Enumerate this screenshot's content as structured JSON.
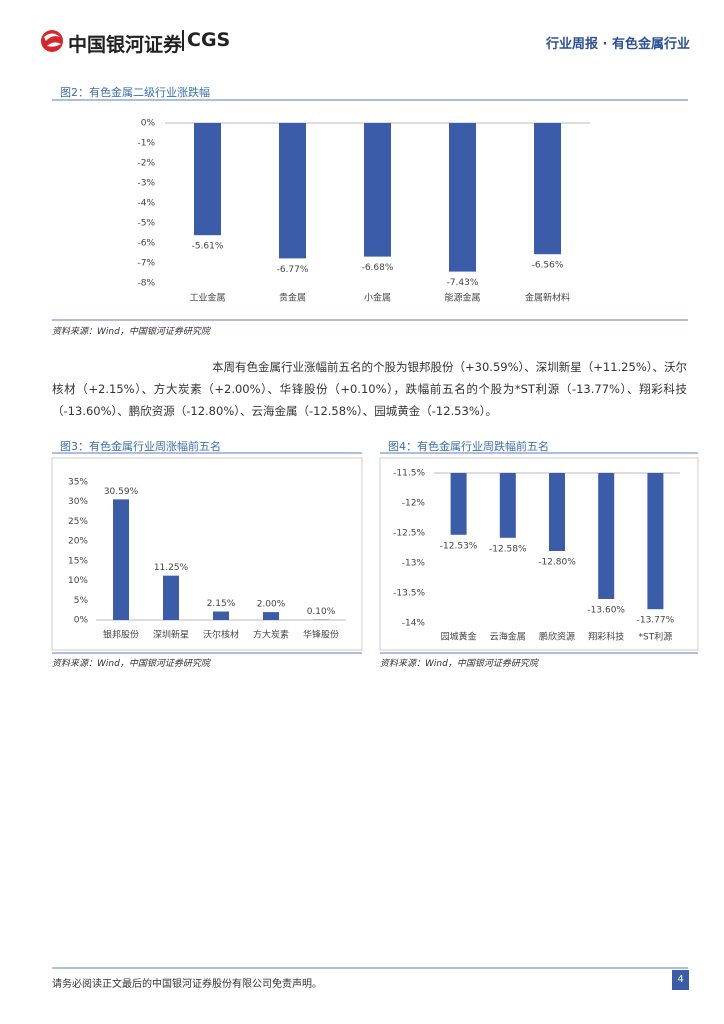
{
  "header": {
    "logo_text": "中国银河证券",
    "logo_brand": "CGS",
    "section": "行业周报 · 有色金属行业"
  },
  "chart_data": [
    {
      "type": "bar",
      "title": "图2：有色金属二级行业涨跌幅",
      "categories": [
        "工业金属",
        "贵金属",
        "小金属",
        "能源金属",
        "金属新材料"
      ],
      "values": [
        -5.61,
        -6.77,
        -6.68,
        -7.43,
        -6.56
      ],
      "value_labels": [
        "-5.61%",
        "-6.77%",
        "-6.68%",
        "-7.43%",
        "-6.56%"
      ],
      "color": "#3a5ca9",
      "ylim": [
        -8,
        0
      ],
      "yticks": [
        {
          "value": 0,
          "label": "0%"
        },
        {
          "value": -1,
          "label": "-1%"
        },
        {
          "value": -2,
          "label": "-2%"
        },
        {
          "value": -3,
          "label": "-3%"
        },
        {
          "value": -4,
          "label": "-4%"
        },
        {
          "value": -5,
          "label": "-5%"
        },
        {
          "value": -6,
          "label": "-6%"
        },
        {
          "value": -7,
          "label": "-7%"
        },
        {
          "value": -8,
          "label": "-8%"
        }
      ],
      "source": "资料来源：Wind，中国银河证券研究院"
    },
    {
      "type": "bar",
      "title": "图3：有色金属行业周涨幅前五名",
      "categories": [
        "银邦股份",
        "深圳新星",
        "沃尔核材",
        "方大炭素",
        "华锋股份"
      ],
      "values": [
        30.59,
        11.25,
        2.15,
        2.0,
        0.1
      ],
      "value_labels": [
        "30.59%",
        "11.25%",
        "2.15%",
        "2.00%",
        "0.10%"
      ],
      "color": "#3a5ca9",
      "ylim": [
        0,
        35
      ],
      "yticks": [
        {
          "value": 35,
          "label": "35%"
        },
        {
          "value": 30,
          "label": "30%"
        },
        {
          "value": 25,
          "label": "25%"
        },
        {
          "value": 20,
          "label": "20%"
        },
        {
          "value": 15,
          "label": "15%"
        },
        {
          "value": 10,
          "label": "10%"
        },
        {
          "value": 5,
          "label": "5%"
        },
        {
          "value": 0,
          "label": "0%"
        }
      ],
      "source": "资料来源：Wind，中国银河证券研究院"
    },
    {
      "type": "bar",
      "title": "图4：有色金属行业周跌幅前五名",
      "categories": [
        "园城黄金",
        "云海金属",
        "鹏欣资源",
        "翔彩科技",
        "*ST利源"
      ],
      "values": [
        -12.53,
        -12.58,
        -12.8,
        -13.6,
        -13.77
      ],
      "value_labels": [
        "-12.53%",
        "-12.58%",
        "-12.80%",
        "-13.60%",
        "-13.77%"
      ],
      "color": "#3a5ca9",
      "ylim": [
        -14,
        -11.5
      ],
      "yticks": [
        {
          "value": -11.5,
          "label": "-11.5%"
        },
        {
          "value": -12,
          "label": "-12%"
        },
        {
          "value": -12.5,
          "label": "-12.5%"
        },
        {
          "value": -13,
          "label": "-13%"
        },
        {
          "value": -13.5,
          "label": "-13.5%"
        },
        {
          "value": -14,
          "label": "-14%"
        }
      ],
      "source": "资料来源：Wind，中国银河证券研究院"
    }
  ],
  "paragraph": "本周有色金属行业涨幅前五名的个股为银邦股份（+30.59%）、深圳新星（+11.25%）、沃尔核材（+2.15%）、方大炭素（+2.00%）、华锋股份（+0.10%），跌幅前五名的个股为*ST利源（-13.77%）、翔彩科技（-13.60%）、鹏欣资源（-12.80%）、云海金属（-12.58%）、园城黄金（-12.53%）。",
  "footer": {
    "disclaimer": "请务必阅读正文最后的中国银河证券股份有限公司免责声明。",
    "page": "4"
  }
}
